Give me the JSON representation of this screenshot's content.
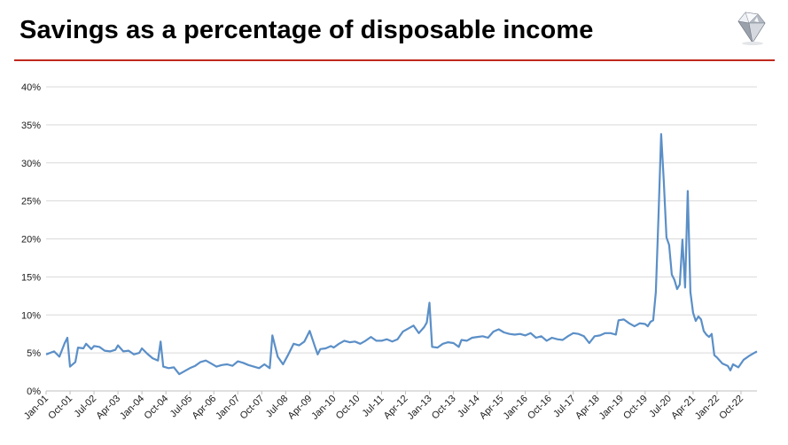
{
  "header": {
    "title": "Savings as a percentage of disposable income"
  },
  "logo": {
    "icon": "diamond-icon"
  },
  "colors": {
    "line": "#5b8fc7",
    "rule": "#c0291e",
    "grid": "#d9d9d9"
  },
  "chart_data": {
    "type": "line",
    "title": "Savings as a percentage of disposable income",
    "xlabel": "",
    "ylabel": "",
    "ylim": [
      0,
      40
    ],
    "grid": true,
    "legend": "none",
    "y_ticks": [
      "0%",
      "5%",
      "10%",
      "15%",
      "20%",
      "25%",
      "30%",
      "35%",
      "40%"
    ],
    "x_ticks": [
      "Jan-01",
      "Oct-01",
      "Jul-02",
      "Apr-03",
      "Jan-04",
      "Oct-04",
      "Jul-05",
      "Apr-06",
      "Jan-07",
      "Oct-07",
      "Jul-08",
      "Apr-09",
      "Jan-10",
      "Oct-10",
      "Jul-11",
      "Apr-12",
      "Jan-13",
      "Oct-13",
      "Jul-14",
      "Apr-15",
      "Jan-16",
      "Oct-16",
      "Jul-17",
      "Apr-18",
      "Jan-19",
      "Oct-19",
      "Jul-20",
      "Apr-21",
      "Jan-22",
      "Oct-22"
    ],
    "series": [
      {
        "points": [
          [
            "Jan-01",
            4.8
          ],
          [
            "Apr-01",
            5.2
          ],
          [
            "Jun-01",
            4.5
          ],
          [
            "Aug-01",
            6.3
          ],
          [
            "Sep-01",
            7.0
          ],
          [
            "Oct-01",
            3.2
          ],
          [
            "Dec-01",
            3.8
          ],
          [
            "Jan-02",
            5.7
          ],
          [
            "Mar-02",
            5.6
          ],
          [
            "Apr-02",
            6.2
          ],
          [
            "Jun-02",
            5.5
          ],
          [
            "Jul-02",
            5.9
          ],
          [
            "Sep-02",
            5.8
          ],
          [
            "Nov-02",
            5.3
          ],
          [
            "Jan-03",
            5.2
          ],
          [
            "Mar-03",
            5.4
          ],
          [
            "Apr-03",
            6.0
          ],
          [
            "Jun-03",
            5.2
          ],
          [
            "Aug-03",
            5.3
          ],
          [
            "Oct-03",
            4.8
          ],
          [
            "Dec-03",
            5.0
          ],
          [
            "Jan-04",
            5.6
          ],
          [
            "Mar-04",
            4.9
          ],
          [
            "May-04",
            4.3
          ],
          [
            "Jul-04",
            4.0
          ],
          [
            "Aug-04",
            6.5
          ],
          [
            "Sep-04",
            3.2
          ],
          [
            "Nov-04",
            3.0
          ],
          [
            "Jan-05",
            3.1
          ],
          [
            "Mar-05",
            2.2
          ],
          [
            "May-05",
            2.6
          ],
          [
            "Jul-05",
            3.0
          ],
          [
            "Sep-05",
            3.3
          ],
          [
            "Nov-05",
            3.8
          ],
          [
            "Jan-06",
            4.0
          ],
          [
            "Mar-06",
            3.6
          ],
          [
            "May-06",
            3.2
          ],
          [
            "Jul-06",
            3.4
          ],
          [
            "Sep-06",
            3.5
          ],
          [
            "Nov-06",
            3.3
          ],
          [
            "Jan-07",
            3.9
          ],
          [
            "Mar-07",
            3.7
          ],
          [
            "May-07",
            3.4
          ],
          [
            "Jul-07",
            3.2
          ],
          [
            "Sep-07",
            3.0
          ],
          [
            "Nov-07",
            3.5
          ],
          [
            "Jan-08",
            3.0
          ],
          [
            "Feb-08",
            7.3
          ],
          [
            "Apr-08",
            4.5
          ],
          [
            "Jun-08",
            3.5
          ],
          [
            "Aug-08",
            4.8
          ],
          [
            "Oct-08",
            6.2
          ],
          [
            "Dec-08",
            6.0
          ],
          [
            "Feb-09",
            6.5
          ],
          [
            "Apr-09",
            7.9
          ],
          [
            "Jun-09",
            5.8
          ],
          [
            "Jul-09",
            4.8
          ],
          [
            "Aug-09",
            5.5
          ],
          [
            "Oct-09",
            5.6
          ],
          [
            "Dec-09",
            5.9
          ],
          [
            "Jan-10",
            5.7
          ],
          [
            "Mar-10",
            6.2
          ],
          [
            "May-10",
            6.6
          ],
          [
            "Jul-10",
            6.4
          ],
          [
            "Sep-10",
            6.5
          ],
          [
            "Nov-10",
            6.2
          ],
          [
            "Jan-11",
            6.6
          ],
          [
            "Mar-11",
            7.1
          ],
          [
            "May-11",
            6.6
          ],
          [
            "Jul-11",
            6.6
          ],
          [
            "Sep-11",
            6.8
          ],
          [
            "Nov-11",
            6.5
          ],
          [
            "Jan-12",
            6.8
          ],
          [
            "Mar-12",
            7.8
          ],
          [
            "May-12",
            8.2
          ],
          [
            "Jul-12",
            8.6
          ],
          [
            "Sep-12",
            7.6
          ],
          [
            "Nov-12",
            8.4
          ],
          [
            "Dec-12",
            9.0
          ],
          [
            "Jan-13",
            11.6
          ],
          [
            "Feb-13",
            5.8
          ],
          [
            "Apr-13",
            5.7
          ],
          [
            "Jun-13",
            6.2
          ],
          [
            "Aug-13",
            6.4
          ],
          [
            "Oct-13",
            6.3
          ],
          [
            "Dec-13",
            5.8
          ],
          [
            "Jan-14",
            6.7
          ],
          [
            "Mar-14",
            6.6
          ],
          [
            "May-14",
            7.0
          ],
          [
            "Jul-14",
            7.1
          ],
          [
            "Sep-14",
            7.2
          ],
          [
            "Nov-14",
            7.0
          ],
          [
            "Jan-15",
            7.8
          ],
          [
            "Mar-15",
            8.1
          ],
          [
            "May-15",
            7.7
          ],
          [
            "Jul-15",
            7.5
          ],
          [
            "Sep-15",
            7.4
          ],
          [
            "Nov-15",
            7.5
          ],
          [
            "Jan-16",
            7.3
          ],
          [
            "Mar-16",
            7.6
          ],
          [
            "May-16",
            7.0
          ],
          [
            "Jul-16",
            7.2
          ],
          [
            "Sep-16",
            6.6
          ],
          [
            "Nov-16",
            7.0
          ],
          [
            "Jan-17",
            6.8
          ],
          [
            "Mar-17",
            6.7
          ],
          [
            "May-17",
            7.2
          ],
          [
            "Jul-17",
            7.6
          ],
          [
            "Sep-17",
            7.5
          ],
          [
            "Nov-17",
            7.2
          ],
          [
            "Jan-18",
            6.3
          ],
          [
            "Mar-18",
            7.2
          ],
          [
            "May-18",
            7.3
          ],
          [
            "Jul-18",
            7.6
          ],
          [
            "Sep-18",
            7.6
          ],
          [
            "Nov-18",
            7.4
          ],
          [
            "Dec-18",
            9.3
          ],
          [
            "Feb-19",
            9.4
          ],
          [
            "Apr-19",
            8.9
          ],
          [
            "Jun-19",
            8.5
          ],
          [
            "Aug-19",
            8.9
          ],
          [
            "Oct-19",
            8.8
          ],
          [
            "Nov-19",
            8.5
          ],
          [
            "Dec-19",
            9.1
          ],
          [
            "Jan-20",
            9.3
          ],
          [
            "Feb-20",
            13.0
          ],
          [
            "Mar-20",
            23.0
          ],
          [
            "Apr-20",
            33.8
          ],
          [
            "May-20",
            27.5
          ],
          [
            "Jun-20",
            20.2
          ],
          [
            "Jul-20",
            19.2
          ],
          [
            "Aug-20",
            15.3
          ],
          [
            "Sep-20",
            14.6
          ],
          [
            "Oct-20",
            13.4
          ],
          [
            "Nov-20",
            14.0
          ],
          [
            "Dec-20",
            19.9
          ],
          [
            "Jan-21",
            13.6
          ],
          [
            "Feb-21",
            26.3
          ],
          [
            "Mar-21",
            13.0
          ],
          [
            "Apr-21",
            10.3
          ],
          [
            "May-21",
            9.2
          ],
          [
            "Jun-21",
            9.8
          ],
          [
            "Jul-21",
            9.4
          ],
          [
            "Aug-21",
            7.9
          ],
          [
            "Sep-21",
            7.4
          ],
          [
            "Oct-21",
            7.1
          ],
          [
            "Nov-21",
            7.5
          ],
          [
            "Dec-21",
            4.7
          ],
          [
            "Jan-22",
            4.4
          ],
          [
            "Mar-22",
            3.6
          ],
          [
            "May-22",
            3.3
          ],
          [
            "Jun-22",
            2.7
          ],
          [
            "Jul-22",
            3.5
          ],
          [
            "Sep-22",
            3.1
          ],
          [
            "Nov-22",
            4.1
          ],
          [
            "Jan-23",
            4.6
          ],
          [
            "Mar-23",
            5.0
          ],
          [
            "Apr-23",
            5.2
          ]
        ]
      }
    ]
  }
}
